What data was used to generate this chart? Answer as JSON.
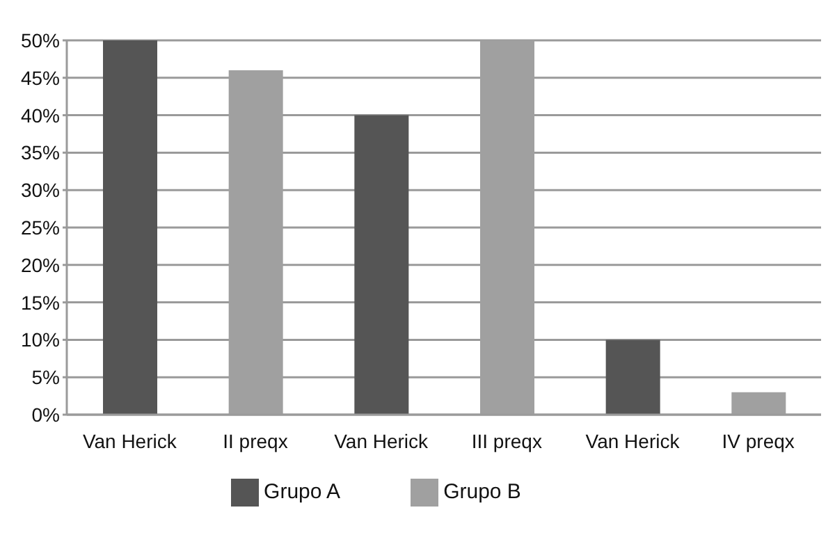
{
  "chart_data": {
    "type": "bar",
    "categories": [
      "Van Herick",
      "II preqx",
      "Van Herick",
      "III preqx",
      "Van Herick",
      "IV preqx"
    ],
    "series": [
      {
        "name": "Grupo A",
        "color": "#555555",
        "values": [
          50,
          null,
          40,
          null,
          10,
          null
        ]
      },
      {
        "name": "Grupo B",
        "color": "#a0a0a0",
        "values": [
          null,
          46,
          null,
          50,
          null,
          3
        ]
      }
    ],
    "ylim": [
      0,
      50
    ],
    "yticks": [
      {
        "value": 0,
        "label": "0%"
      },
      {
        "value": 5,
        "label": "5%"
      },
      {
        "value": 10,
        "label": "10%"
      },
      {
        "value": 15,
        "label": "15%"
      },
      {
        "value": 20,
        "label": "20%"
      },
      {
        "value": 25,
        "label": "25%"
      },
      {
        "value": 30,
        "label": "30%"
      },
      {
        "value": 35,
        "label": "35%"
      },
      {
        "value": 40,
        "label": "40%"
      },
      {
        "value": 45,
        "label": "45%"
      },
      {
        "value": 50,
        "label": "50%"
      }
    ],
    "grid": "y",
    "legend": "bottom"
  }
}
